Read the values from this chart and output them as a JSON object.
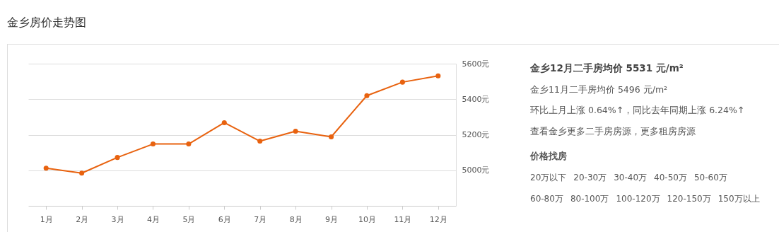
{
  "chart_data": {
    "type": "line",
    "title": "金乡房价走势图",
    "categories": [
      "1月",
      "2月",
      "3月",
      "4月",
      "5月",
      "6月",
      "7月",
      "8月",
      "9月",
      "10月",
      "11月",
      "12月"
    ],
    "series": [
      {
        "color": "#e8620f",
        "values": [
          5012,
          4984,
          5072,
          5148,
          5148,
          5268,
          5164,
          5220,
          5188,
          5420,
          5496,
          5531
        ]
      }
    ],
    "ylim": [
      4800,
      5600
    ],
    "yticks": [
      {
        "value": 5000,
        "label": "5000元"
      },
      {
        "value": 5200,
        "label": "5200元"
      },
      {
        "value": 5400,
        "label": "5400元"
      },
      {
        "value": 5600,
        "label": "5600元"
      }
    ],
    "grid": "y",
    "marker": "circle",
    "line_style": "solid",
    "annotations": [
      "金乡12月二手房均价 5531 元/m²",
      "金乡11月二手房均价 5496 元/m²",
      "环比上月上涨 0.64%↑，同比去年同期上涨 6.24%↑",
      "查看金乡更多二手房房源，更多租房房源",
      "价格找房",
      "20万以下",
      "20-30万",
      "30-40万",
      "40-50万",
      "50-60万",
      "60-80万",
      "80-100万",
      "100-120万",
      "120-150万",
      "150万以上"
    ]
  }
}
